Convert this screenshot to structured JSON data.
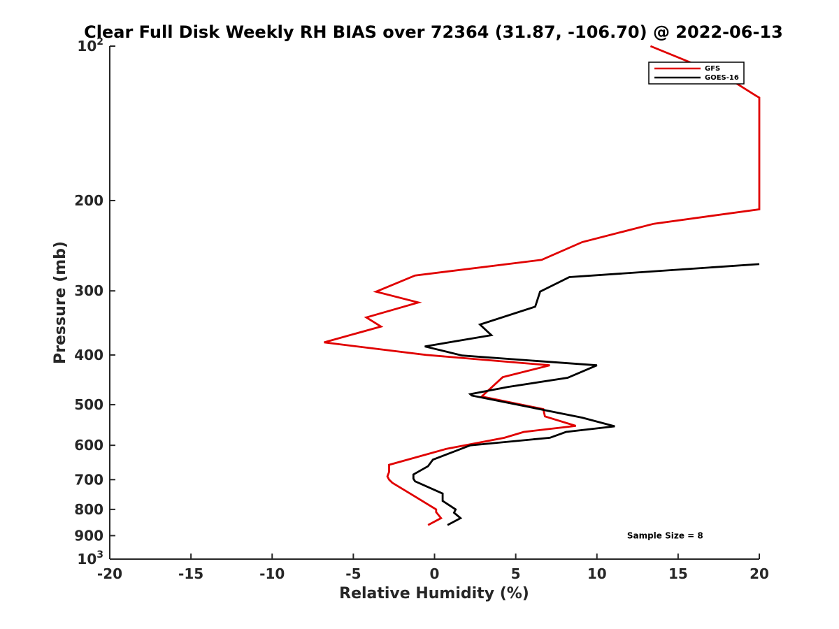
{
  "chart_data": {
    "type": "line",
    "title": "Clear Full Disk Weekly RH BIAS over 72364 (31.87, -106.70) @ 2022-06-13",
    "xlabel": "Relative Humidity (%)",
    "ylabel": "Pressure (mb)",
    "xlim": [
      -20,
      20
    ],
    "ylim": [
      100,
      1000
    ],
    "y_scale": "log",
    "y_reversed": true,
    "grid": false,
    "legend_position": "top-right",
    "x_ticks": [
      -20,
      -15,
      -10,
      -5,
      0,
      5,
      10,
      15,
      20
    ],
    "y_ticks": [
      {
        "value": 100,
        "base": "10",
        "exp": "2"
      },
      {
        "value": 200,
        "label": "200"
      },
      {
        "value": 300,
        "label": "300"
      },
      {
        "value": 400,
        "label": "400"
      },
      {
        "value": 500,
        "label": "500"
      },
      {
        "value": 600,
        "label": "600"
      },
      {
        "value": 700,
        "label": "700"
      },
      {
        "value": 800,
        "label": "800"
      },
      {
        "value": 900,
        "label": "900"
      },
      {
        "value": 1000,
        "base": "10",
        "exp": "3"
      }
    ],
    "series": [
      {
        "name": "GFS",
        "color": "#e00000",
        "points": [
          [
            13.3,
            100
          ],
          [
            18.0,
            115
          ],
          [
            19.8,
            125
          ],
          [
            20.0,
            126
          ],
          [
            20.0,
            208
          ],
          [
            13.5,
            222
          ],
          [
            9.1,
            241
          ],
          [
            6.6,
            261
          ],
          [
            -1.2,
            280
          ],
          [
            -3.6,
            301
          ],
          [
            -1.0,
            316
          ],
          [
            -4.2,
            338
          ],
          [
            -3.3,
            352
          ],
          [
            -6.8,
            378
          ],
          [
            -0.5,
            400
          ],
          [
            7.1,
            419
          ],
          [
            4.2,
            442
          ],
          [
            2.9,
            482
          ],
          [
            6.7,
            510
          ],
          [
            6.8,
            527
          ],
          [
            8.7,
            550
          ],
          [
            5.5,
            565
          ],
          [
            4.3,
            580
          ],
          [
            0.7,
            610
          ],
          [
            -2.8,
            655
          ],
          [
            -2.8,
            676
          ],
          [
            -2.9,
            690
          ],
          [
            -2.8,
            700
          ],
          [
            -2.6,
            710
          ],
          [
            -1.3,
            752
          ],
          [
            0.1,
            800
          ],
          [
            0.1,
            810
          ],
          [
            0.4,
            832
          ],
          [
            -0.4,
            858
          ]
        ]
      },
      {
        "name": "GOES-16",
        "color": "#000000",
        "points": [
          [
            20.0,
            266
          ],
          [
            8.3,
            282
          ],
          [
            6.5,
            301
          ],
          [
            6.2,
            322
          ],
          [
            2.8,
            349
          ],
          [
            3.5,
            366
          ],
          [
            -0.6,
            385
          ],
          [
            1.7,
            401
          ],
          [
            10.0,
            419
          ],
          [
            8.2,
            443
          ],
          [
            4.5,
            462
          ],
          [
            2.2,
            477
          ],
          [
            2.3,
            480
          ],
          [
            9.1,
            530
          ],
          [
            11.1,
            551
          ],
          [
            8.1,
            565
          ],
          [
            7.1,
            580
          ],
          [
            2.2,
            600
          ],
          [
            -0.1,
            640
          ],
          [
            -0.4,
            659
          ],
          [
            -1.3,
            684
          ],
          [
            -1.3,
            697
          ],
          [
            -1.2,
            705
          ],
          [
            0.5,
            745
          ],
          [
            0.5,
            770
          ],
          [
            1.3,
            800
          ],
          [
            1.2,
            812
          ],
          [
            1.6,
            832
          ],
          [
            0.8,
            858
          ]
        ]
      }
    ],
    "annotations": [
      {
        "text": "Sample Size = 8",
        "x": 14.2,
        "y": 900
      }
    ]
  }
}
